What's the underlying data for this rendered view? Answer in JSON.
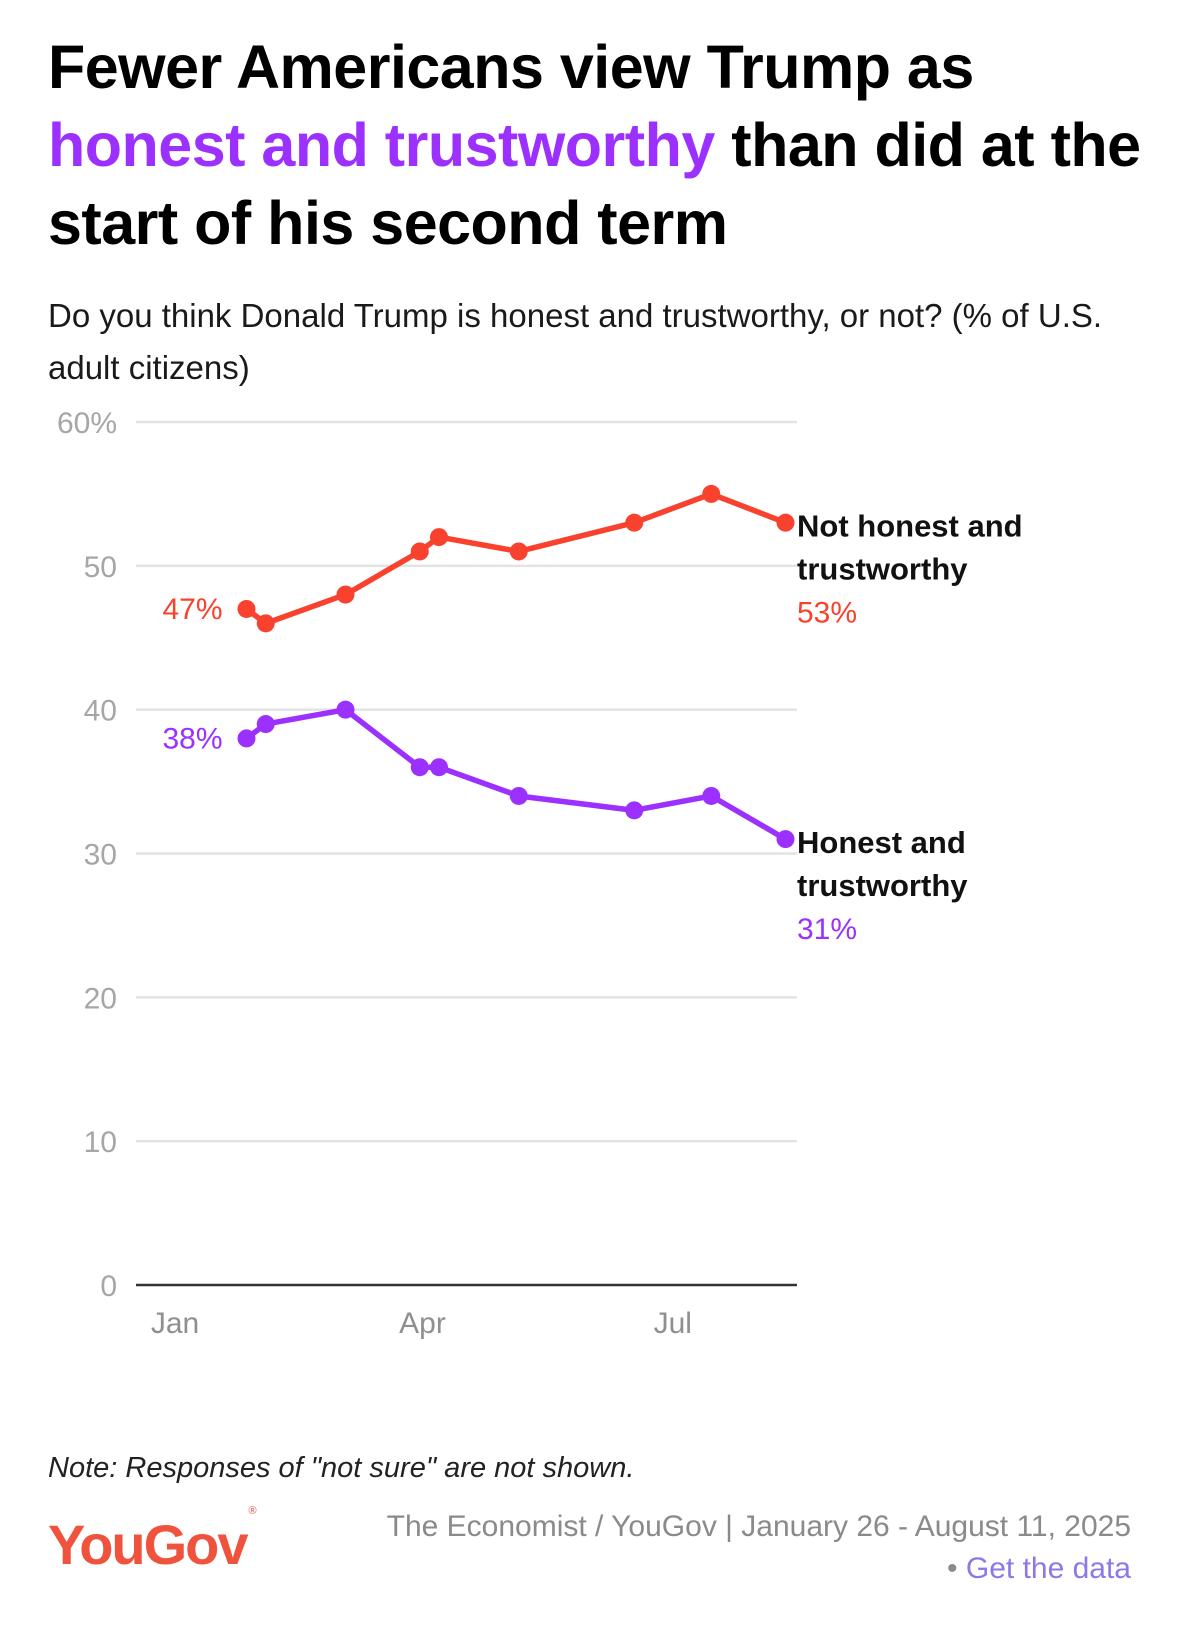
{
  "title": {
    "part1": "Fewer Americans view Trump as",
    "highlight": "honest and trustworthy",
    "part2": "than did at the start of his second term"
  },
  "subtitle": "Do you think Donald Trump is honest and trustworthy, or not? (% of U.S. adult citizens)",
  "note": "Note: Responses of \"not sure\" are not shown.",
  "logo": {
    "text": "YouGov",
    "mark": "®"
  },
  "source": {
    "text": "The Economist / YouGov | January 26 - August 11, 2025 •",
    "link": "Get the data"
  },
  "colors": {
    "not_honest": "#f8422d",
    "honest": "#9b30ff",
    "highlight": "#9b30ff",
    "brand": "#f0533d",
    "link": "#8b79e8"
  },
  "chart_data": {
    "type": "line",
    "x_ticks": [
      {
        "label": "Jan",
        "date": "2025-01-01"
      },
      {
        "label": "Apr",
        "date": "2025-04-01"
      },
      {
        "label": "Jul",
        "date": "2025-07-01"
      }
    ],
    "y_ticks": [
      "60%",
      "50",
      "40",
      "30",
      "20",
      "10",
      "0"
    ],
    "y_tick_values": [
      60,
      50,
      40,
      30,
      20,
      10,
      0
    ],
    "ylim": [
      0,
      60
    ],
    "grid": true,
    "series": [
      {
        "name": "Not honest and trustworthy",
        "color": "#f8422d",
        "start_label": "47%",
        "end_label": "53%",
        "points": [
          {
            "x": "2025-01-27",
            "y": 47
          },
          {
            "x": "2025-02-03",
            "y": 46
          },
          {
            "x": "2025-03-04",
            "y": 48
          },
          {
            "x": "2025-03-31",
            "y": 51
          },
          {
            "x": "2025-04-07",
            "y": 52
          },
          {
            "x": "2025-05-06",
            "y": 51
          },
          {
            "x": "2025-06-17",
            "y": 53
          },
          {
            "x": "2025-07-15",
            "y": 55
          },
          {
            "x": "2025-08-11",
            "y": 53
          }
        ]
      },
      {
        "name": "Honest and trustworthy",
        "color": "#9b30ff",
        "start_label": "38%",
        "end_label": "31%",
        "points": [
          {
            "x": "2025-01-27",
            "y": 38
          },
          {
            "x": "2025-02-03",
            "y": 39
          },
          {
            "x": "2025-03-04",
            "y": 40
          },
          {
            "x": "2025-03-31",
            "y": 36
          },
          {
            "x": "2025-04-07",
            "y": 36
          },
          {
            "x": "2025-05-06",
            "y": 34
          },
          {
            "x": "2025-06-17",
            "y": 33
          },
          {
            "x": "2025-07-15",
            "y": 34
          },
          {
            "x": "2025-08-11",
            "y": 31
          }
        ]
      }
    ]
  }
}
